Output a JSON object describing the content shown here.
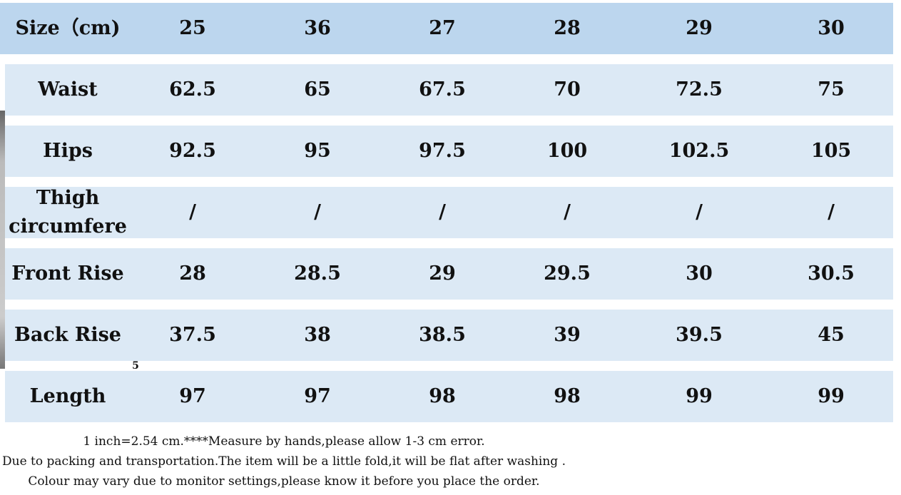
{
  "table": {
    "header": [
      "Size（cm)",
      "25",
      "36",
      "27",
      "28",
      "29",
      "30"
    ],
    "rows": [
      [
        "Waist",
        "62.5",
        "65",
        "67.5",
        "70",
        "72.5",
        "75"
      ],
      [
        "Hips",
        "92.5",
        "95",
        "97.5",
        "100",
        "102.5",
        "105"
      ],
      [
        "Thigh circumfere",
        "/",
        "/",
        "/",
        "/",
        "/",
        "/"
      ],
      [
        "Front Rise",
        "28",
        "28.5",
        "29",
        "29.5",
        "30",
        "30.5"
      ],
      [
        "Back Rise",
        "37.5",
        "38",
        "38.5",
        "39",
        "39.5",
        "45"
      ],
      [
        "Length",
        "97",
        "97",
        "98",
        "98",
        "99",
        "99"
      ]
    ]
  },
  "stray_mark": "5",
  "notes": [
    "1 inch=2.54 cm.****Measure by hands,please allow 1-3 cm error.",
    "Due to packing and transportation.The item will be a little fold,it will be flat after washing .",
    "Colour may vary due to monitor settings,please know it before you place the order."
  ]
}
